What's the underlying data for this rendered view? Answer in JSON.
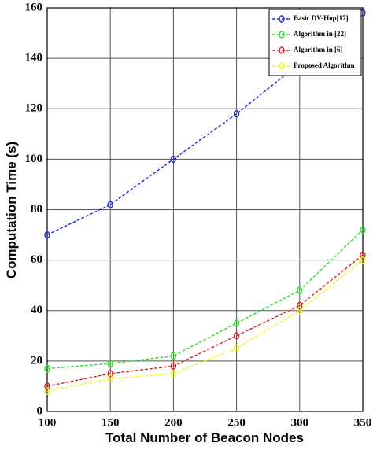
{
  "chart_data": {
    "type": "line",
    "xlabel": "Total Number of Beacon Nodes",
    "ylabel": "Computation Time (s)",
    "x": [
      100,
      150,
      200,
      250,
      300,
      350
    ],
    "series": [
      {
        "name": "Basic DV-Hop[17]",
        "color": "#1f2bd6",
        "values": [
          70,
          82,
          100,
          118,
          138,
          158
        ]
      },
      {
        "name": "Algorithm in [22]",
        "color": "#2fe02f",
        "values": [
          17,
          19,
          22,
          35,
          48,
          72
        ]
      },
      {
        "name": "Algorithm in [6]",
        "color": "#e0201f",
        "values": [
          10,
          15,
          18,
          30,
          42,
          62
        ]
      },
      {
        "name": "Proposed Algorithm",
        "color": "#f5f520",
        "values": [
          8,
          13,
          15,
          25,
          40,
          60
        ]
      }
    ],
    "xlim": [
      100,
      350
    ],
    "xticks": [
      100,
      150,
      200,
      250,
      300,
      350
    ],
    "ylim": [
      0,
      160
    ],
    "yticks": [
      0,
      20,
      40,
      60,
      80,
      100,
      120,
      140,
      160
    ],
    "grid": true,
    "legend": "upper right"
  }
}
